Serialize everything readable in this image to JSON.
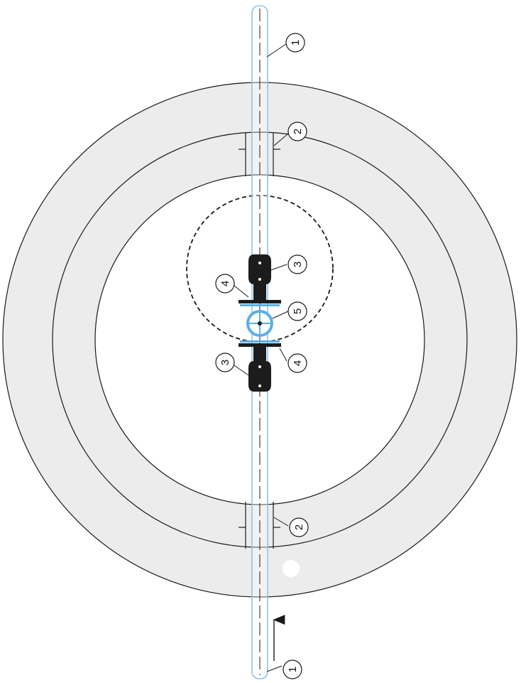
{
  "colors": {
    "ring_fill": "#ececec",
    "line": "#1a1a1a",
    "pipe": "#8ec3ee",
    "valve": "#5aaee8",
    "paper": "#ffffff"
  },
  "callouts": {
    "pipe_top": "1",
    "pipe_bottom": "1",
    "penetration_top": "2",
    "penetration_bottom": "2",
    "fitting_upper": "3",
    "fitting_lower": "3",
    "flange_upper": "4",
    "flange_lower": "4",
    "valve": "5"
  },
  "icons": {
    "flow_direction": "arrow-up-icon"
  }
}
